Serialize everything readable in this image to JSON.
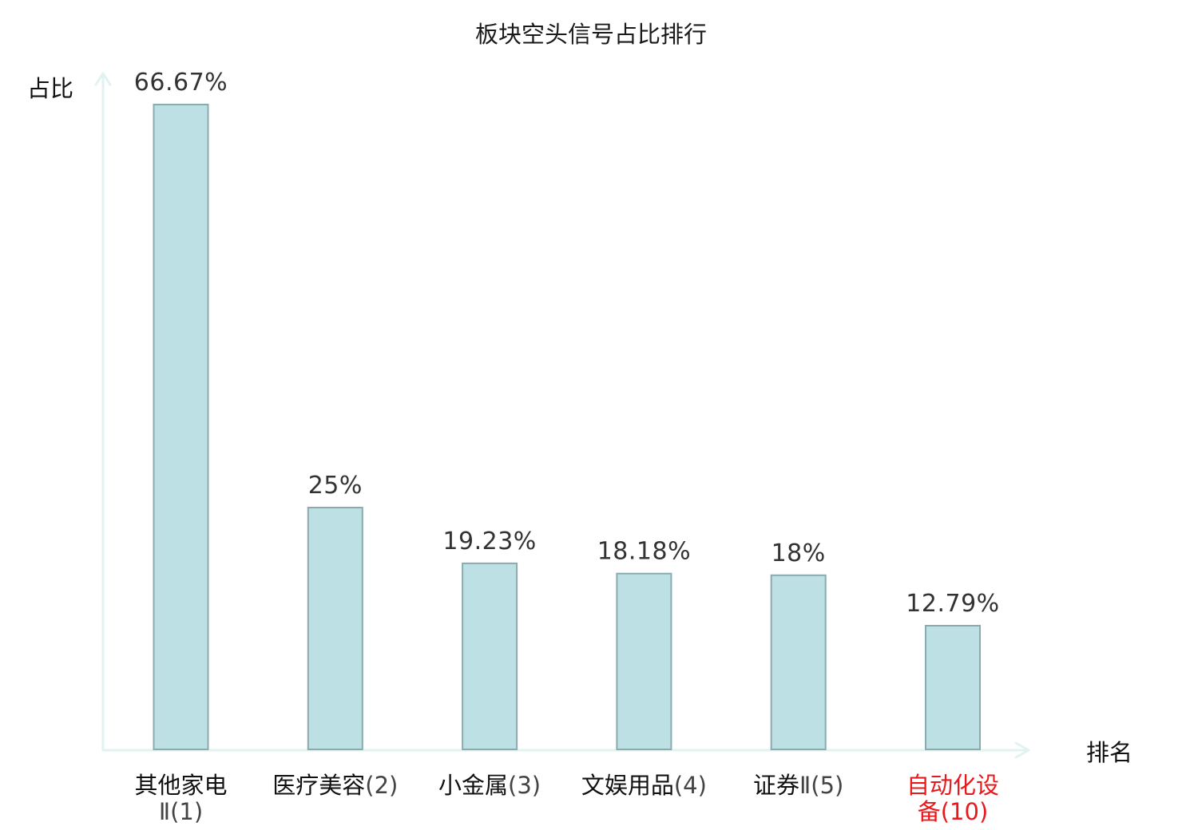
{
  "chart_data": {
    "type": "bar",
    "title": "板块空头信号占比排行",
    "xlabel": "排名",
    "ylabel": "占比",
    "ylim": [
      0,
      70
    ],
    "grid": false,
    "legend": "none",
    "categories": [
      {
        "lines": [
          {
            "name": "其他家电",
            "rank": ""
          },
          {
            "name": "",
            "rank": "Ⅱ(1)"
          }
        ],
        "highlight": false
      },
      {
        "lines": [
          {
            "name": "医疗美容",
            "rank": "(2)"
          }
        ],
        "highlight": false
      },
      {
        "lines": [
          {
            "name": "小金属",
            "rank": "(3)"
          }
        ],
        "highlight": false
      },
      {
        "lines": [
          {
            "name": "文娱用品",
            "rank": "(4)"
          }
        ],
        "highlight": false
      },
      {
        "lines": [
          {
            "name": "证券",
            "rank": "Ⅱ(5)"
          }
        ],
        "highlight": false
      },
      {
        "lines": [
          {
            "name": "自动化设",
            "rank": ""
          },
          {
            "name": "备",
            "rank": "(10)"
          }
        ],
        "highlight": true
      }
    ],
    "values": [
      66.67,
      25,
      19.23,
      18.18,
      18,
      12.79
    ],
    "value_labels": [
      "66.67%",
      "25%",
      "19.23%",
      "18.18%",
      "18%",
      "12.79%"
    ]
  },
  "colors": {
    "bar_fill": "#bce0e3",
    "bar_stroke": "#8aabae",
    "axis": "#e1f3f1",
    "highlight_text": "#e8191d"
  }
}
